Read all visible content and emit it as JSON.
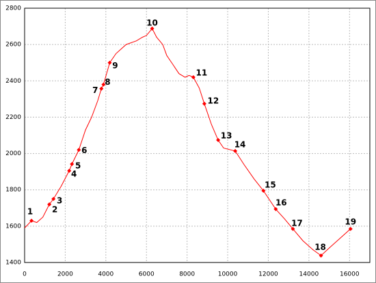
{
  "chart_data": {
    "type": "line",
    "color": "#ff0000",
    "grid": true,
    "xlim": [
      0,
      17000
    ],
    "ylim": [
      1400,
      2800
    ],
    "xticks": [
      0,
      2000,
      4000,
      6000,
      8000,
      10000,
      12000,
      14000,
      16000
    ],
    "yticks": [
      1400,
      1600,
      1800,
      2000,
      2200,
      2400,
      2600,
      2800
    ],
    "x": [
      0,
      340,
      600,
      900,
      1216,
      1420,
      1800,
      2196,
      2330,
      2670,
      3000,
      3300,
      3600,
      3780,
      3885,
      4190,
      4500,
      5000,
      5500,
      5800,
      6000,
      6280,
      6500,
      6800,
      7000,
      7300,
      7600,
      7900,
      8100,
      8310,
      8600,
      8850,
      9200,
      9530,
      9800,
      10370,
      10800,
      11300,
      11760,
      12365,
      12800,
      13210,
      13700,
      14200,
      14595,
      15000,
      15500,
      16050
    ],
    "values": [
      1590,
      1630,
      1620,
      1650,
      1720,
      1750,
      1820,
      1905,
      1942,
      2020,
      2130,
      2200,
      2290,
      2357,
      2380,
      2500,
      2550,
      2600,
      2620,
      2640,
      2650,
      2688,
      2640,
      2600,
      2540,
      2490,
      2440,
      2420,
      2430,
      2420,
      2360,
      2274,
      2160,
      2074,
      2030,
      2014,
      1940,
      1860,
      1795,
      1694,
      1640,
      1585,
      1520,
      1470,
      1438,
      1480,
      1530,
      1585
    ],
    "points": {
      "color": "#ff0000",
      "labels": [
        "1",
        "2",
        "3",
        "4",
        "5",
        "6",
        "7",
        "8",
        "9",
        "10",
        "11",
        "12",
        "13",
        "14",
        "15",
        "16",
        "17",
        "18",
        "19"
      ],
      "x": [
        340,
        1216,
        1420,
        2196,
        2330,
        2670,
        3780,
        3885,
        4190,
        6280,
        8310,
        8850,
        9530,
        10370,
        11760,
        12365,
        13210,
        14595,
        16050
      ],
      "values": [
        1630,
        1720,
        1750,
        1905,
        1942,
        2020,
        2357,
        2380,
        2500,
        2688,
        2420,
        2274,
        2074,
        2014,
        1795,
        1694,
        1585,
        1438,
        1585
      ]
    }
  }
}
